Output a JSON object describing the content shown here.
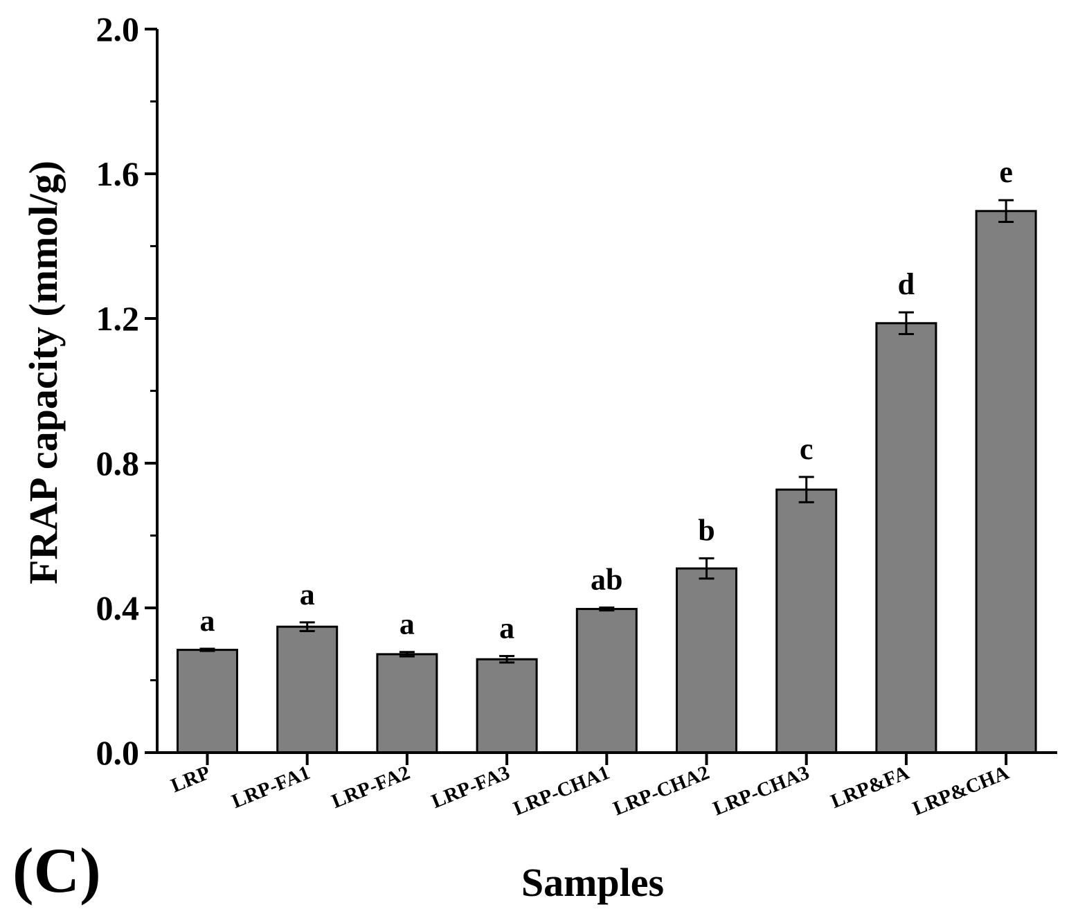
{
  "chart_data": {
    "type": "bar",
    "title": "",
    "panel_label": "(C)",
    "xlabel": "Samples",
    "ylabel": "FRAP capacity (mmol/g)",
    "ylim": [
      0,
      2.0
    ],
    "yticks": [
      "0.0",
      "0.4",
      "0.8",
      "1.2",
      "1.6",
      "2.0"
    ],
    "grid": false,
    "bar_color": "#808080",
    "categories": [
      "LRP",
      "LRP-FA1",
      "LRP-FA2",
      "LRP-FA3",
      "LRP-CHA1",
      "LRP-CHA2",
      "LRP-CHA3",
      "LRP&FA",
      "LRP&CHA"
    ],
    "values": [
      0.284,
      0.348,
      0.272,
      0.258,
      0.397,
      0.509,
      0.727,
      1.187,
      1.497
    ],
    "errors": [
      0.003,
      0.012,
      0.006,
      0.009,
      0.004,
      0.028,
      0.035,
      0.03,
      0.03
    ],
    "significance_labels": [
      "a",
      "a",
      "a",
      "a",
      "ab",
      "b",
      "c",
      "d",
      "e"
    ]
  }
}
